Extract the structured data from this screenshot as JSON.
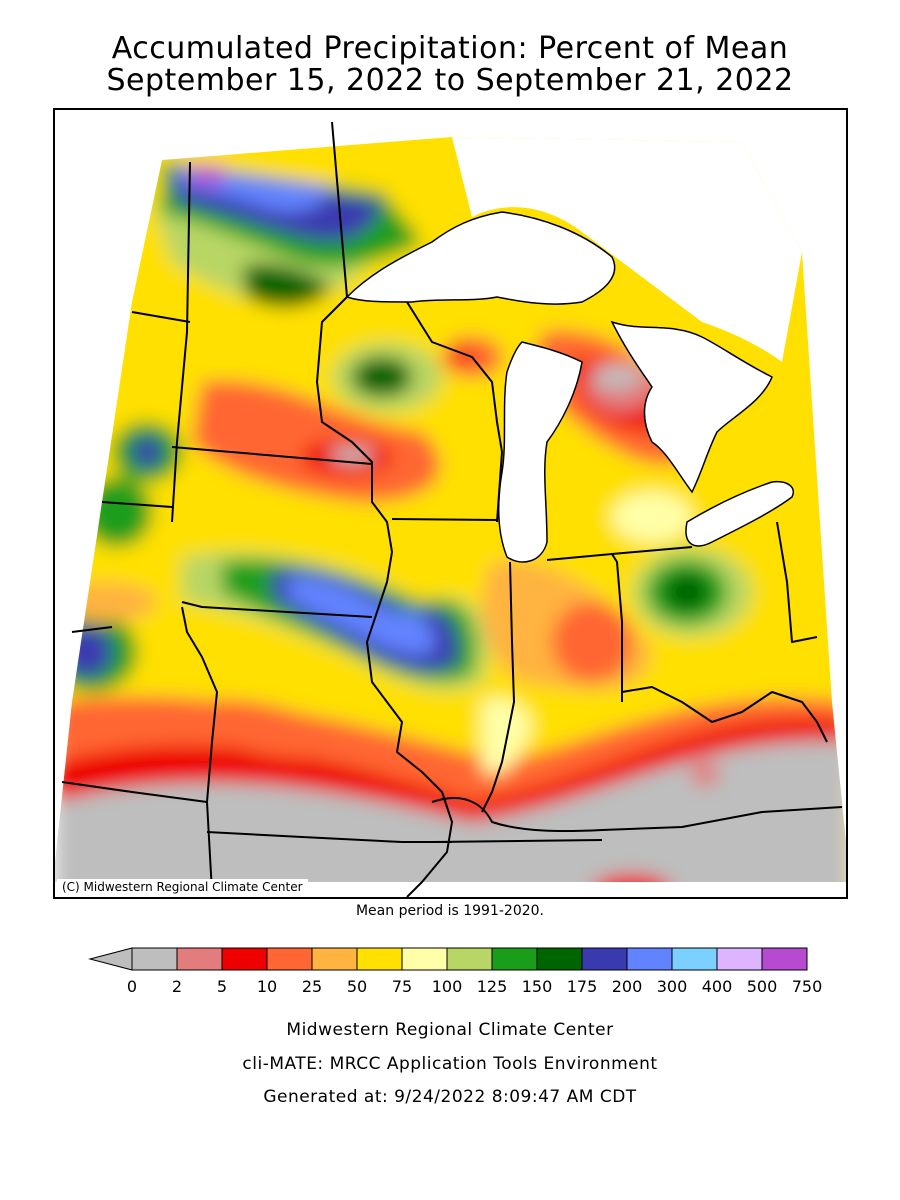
{
  "header": {
    "title_line1": "Accumulated Precipitation: Percent of Mean",
    "title_line2": "September 15, 2022 to September 21, 2022"
  },
  "map": {
    "copyright": "(C) Midwestern Regional Climate Center",
    "mean_period_note": "Mean period is 1991-2020."
  },
  "legend": {
    "colors": [
      "#bebebe",
      "#e37c7c",
      "#ee0000",
      "#ff6633",
      "#ffb341",
      "#ffe000",
      "#ffffa8",
      "#b8d665",
      "#1a9e1a",
      "#006400",
      "#3a3ab0",
      "#6283ff",
      "#7cd0ff",
      "#ddb4ff",
      "#b64bd2"
    ],
    "labels": [
      "0",
      "2",
      "5",
      "10",
      "25",
      "50",
      "75",
      "100",
      "125",
      "150",
      "175",
      "200",
      "300",
      "400",
      "500",
      "750"
    ]
  },
  "footer": {
    "line1": "Midwestern Regional Climate Center",
    "line2": "cli-MATE: MRCC Application Tools Environment",
    "line3": "Generated at: 9/24/2022 8:09:47 AM CDT"
  }
}
